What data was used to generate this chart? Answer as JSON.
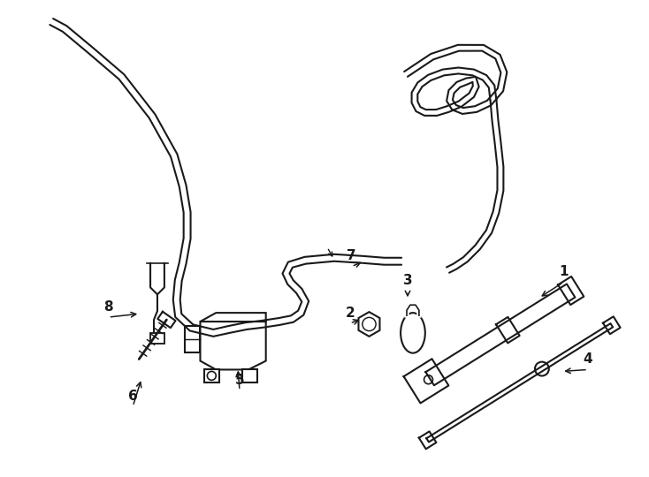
{
  "bg_color": "#ffffff",
  "line_color": "#1a1a1a",
  "lw": 1.5,
  "fig_width": 7.34,
  "fig_height": 5.4
}
